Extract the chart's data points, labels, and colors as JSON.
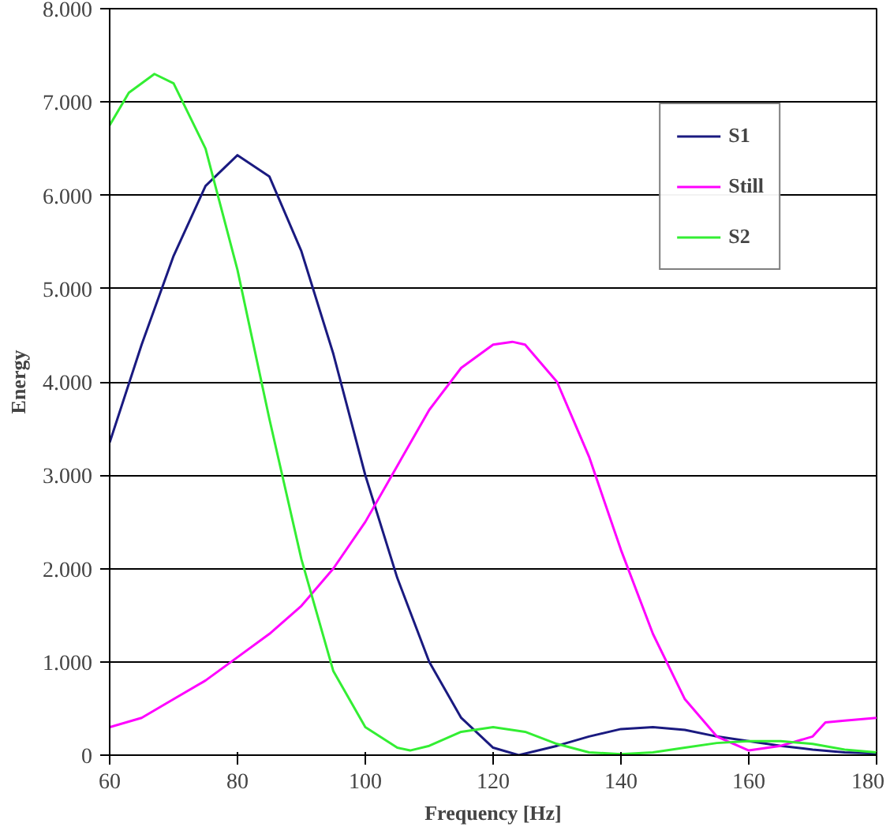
{
  "chart_data": {
    "type": "line",
    "xlabel": "Frequency [Hz]",
    "ylabel": "Energy",
    "xlim": [
      60,
      180
    ],
    "xticks": [
      60,
      80,
      100,
      120,
      140,
      160,
      180
    ],
    "ylim": [
      0,
      8000
    ],
    "yticks": [
      0,
      {
        "value": 1000,
        "label": "1.000"
      },
      {
        "value": 2000,
        "label": "2.000"
      },
      {
        "value": 3000,
        "label": "3.000"
      },
      {
        "value": 4000,
        "label": "4.000"
      },
      {
        "value": 5000,
        "label": "5.000"
      },
      {
        "value": 6000,
        "label": "6.000"
      },
      {
        "value": 7000,
        "label": "7.000"
      },
      {
        "value": 8000,
        "label": "8.000"
      }
    ],
    "grid": "y",
    "legend": "top right",
    "marker": "none",
    "line_style": "solid",
    "series": [
      {
        "name": "S1",
        "color": "#1a1a80",
        "x": [
          60,
          65,
          70,
          75,
          80,
          85,
          90,
          95,
          100,
          105,
          110,
          115,
          120,
          124,
          130,
          135,
          140,
          145,
          150,
          155,
          160,
          165,
          170,
          175,
          180
        ],
        "values": [
          3350,
          4400,
          5350,
          6100,
          6430,
          6200,
          5400,
          4300,
          3000,
          1900,
          1000,
          400,
          80,
          0,
          100,
          200,
          280,
          300,
          270,
          200,
          150,
          100,
          60,
          30,
          20
        ]
      },
      {
        "name": "Still",
        "color": "#ff00ff",
        "x": [
          60,
          65,
          70,
          75,
          80,
          85,
          90,
          95,
          100,
          105,
          110,
          115,
          120,
          123,
          125,
          130,
          135,
          140,
          145,
          150,
          155,
          160,
          165,
          170,
          172,
          175,
          180
        ],
        "values": [
          300,
          400,
          600,
          800,
          1050,
          1300,
          1600,
          2000,
          2500,
          3100,
          3700,
          4150,
          4400,
          4430,
          4400,
          4000,
          3200,
          2200,
          1300,
          600,
          200,
          50,
          100,
          200,
          350,
          370,
          400
        ]
      },
      {
        "name": "S2",
        "color": "#33ee33",
        "x": [
          60,
          63,
          67,
          70,
          75,
          80,
          85,
          90,
          95,
          100,
          105,
          107,
          110,
          115,
          120,
          125,
          130,
          135,
          140,
          145,
          150,
          155,
          160,
          165,
          170,
          175,
          180
        ],
        "values": [
          6750,
          7100,
          7300,
          7200,
          6500,
          5200,
          3600,
          2100,
          900,
          300,
          80,
          50,
          100,
          250,
          300,
          250,
          120,
          30,
          10,
          30,
          80,
          130,
          150,
          150,
          120,
          60,
          30
        ]
      }
    ]
  }
}
